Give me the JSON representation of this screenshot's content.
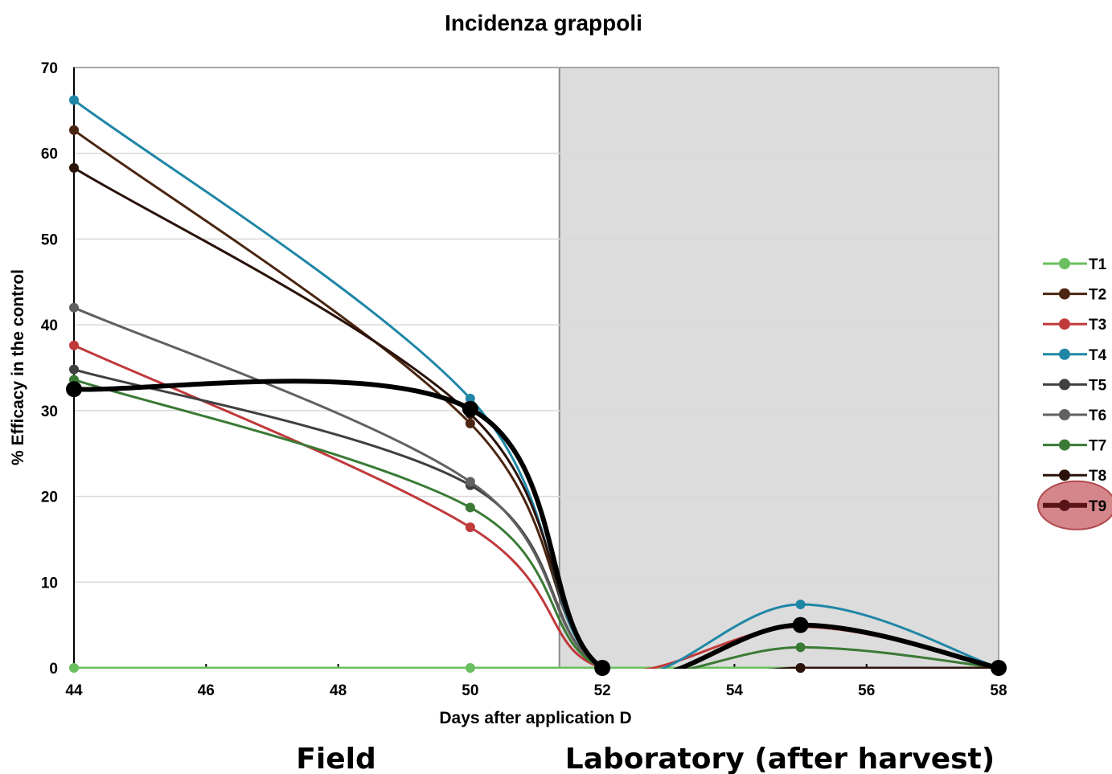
{
  "chart_data": {
    "type": "line",
    "title": "Incidenza grappoli",
    "xlabel": "Days after application D",
    "ylabel": "% Efficacy in the control",
    "xlim": [
      44,
      58
    ],
    "ylim": [
      0,
      70
    ],
    "xticks": [
      44,
      46,
      48,
      50,
      52,
      54,
      56,
      58
    ],
    "yticks": [
      0,
      10,
      20,
      30,
      40,
      50,
      60,
      70
    ],
    "x": [
      44,
      50,
      52,
      55,
      58
    ],
    "shaded_region": {
      "from": 51.35,
      "to": 58,
      "color": "#dcdcdc"
    },
    "region_labels": [
      {
        "text": "Field",
        "x": 48
      },
      {
        "text": "Laboratory (after harvest)",
        "x": 54.7
      }
    ],
    "legend_position": "right",
    "series": [
      {
        "name": "T1",
        "color": "#6abf5e",
        "values": [
          0,
          0,
          0,
          0,
          0
        ],
        "width": 3,
        "marker": 6
      },
      {
        "name": "T2",
        "color": "#4a2510",
        "values": [
          62.7,
          28.5,
          0,
          0,
          0
        ],
        "width": 3,
        "marker": 6
      },
      {
        "name": "T3",
        "color": "#c0393b",
        "values": [
          37.6,
          16.4,
          0,
          4.8,
          0
        ],
        "width": 3,
        "marker": 6
      },
      {
        "name": "T4",
        "color": "#1f86a6",
        "values": [
          66.2,
          31.4,
          0,
          7.4,
          0
        ],
        "width": 3,
        "marker": 6
      },
      {
        "name": "T5",
        "color": "#404040",
        "values": [
          34.8,
          21.3,
          0,
          0,
          0
        ],
        "width": 3,
        "marker": 6
      },
      {
        "name": "T6",
        "color": "#606060",
        "values": [
          42.0,
          21.7,
          0,
          0,
          0
        ],
        "width": 3,
        "marker": 6
      },
      {
        "name": "T7",
        "color": "#3a7a35",
        "values": [
          33.6,
          18.7,
          0,
          2.4,
          0
        ],
        "width": 3,
        "marker": 6
      },
      {
        "name": "T8",
        "color": "#2a120a",
        "values": [
          58.3,
          29.6,
          0,
          0,
          0
        ],
        "width": 3,
        "marker": 6
      },
      {
        "name": "T9",
        "color": "#000000",
        "values": [
          32.5,
          30.2,
          0,
          5.0,
          0
        ],
        "width": 6,
        "marker": 10,
        "highlighted": true
      }
    ]
  }
}
